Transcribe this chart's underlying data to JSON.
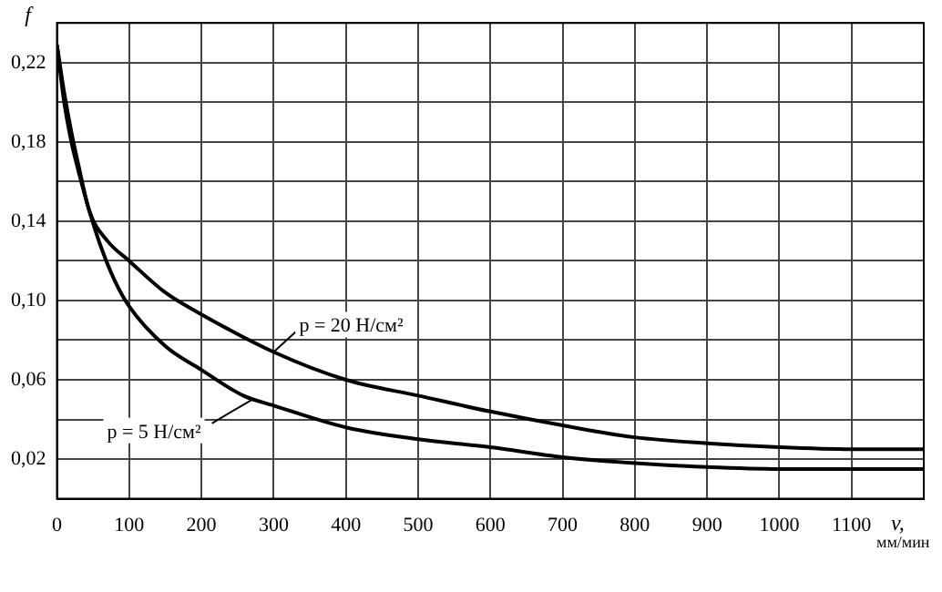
{
  "chart_data": {
    "type": "line",
    "xlabel": "v, мм/мин",
    "ylabel": "f",
    "xlim": [
      0,
      1200
    ],
    "xticks": [
      0,
      100,
      200,
      300,
      400,
      500,
      600,
      700,
      800,
      900,
      1000,
      1100
    ],
    "ylim": [
      0,
      0.24
    ],
    "yticks": [
      {
        "value": 0,
        "label": null
      },
      {
        "value": 0.02,
        "label": "0,02"
      },
      {
        "value": 0.04,
        "label": null
      },
      {
        "value": 0.06,
        "label": "0,06"
      },
      {
        "value": 0.08,
        "label": null
      },
      {
        "value": 0.1,
        "label": "0,10"
      },
      {
        "value": 0.12,
        "label": null
      },
      {
        "value": 0.14,
        "label": "0,14"
      },
      {
        "value": 0.16,
        "label": null
      },
      {
        "value": 0.18,
        "label": "0,18"
      },
      {
        "value": 0.2,
        "label": null
      },
      {
        "value": 0.22,
        "label": "0,22"
      },
      {
        "value": 0.24,
        "label": null
      }
    ],
    "grid": true,
    "legend": false,
    "marker": "none",
    "line_style": "solid",
    "series": [
      {
        "color": "#000000",
        "x": [
          0,
          10,
          20,
          30,
          45,
          60,
          80,
          100,
          150,
          200,
          258,
          300,
          400,
          500,
          600,
          700,
          800,
          900,
          1000,
          1100,
          1200
        ],
        "values": [
          0.229,
          0.2,
          0.18,
          0.165,
          0.145,
          0.128,
          0.11,
          0.097,
          0.077,
          0.065,
          0.052,
          0.047,
          0.036,
          0.03,
          0.026,
          0.021,
          0.018,
          0.016,
          0.015,
          0.015,
          0.015
        ]
      },
      {
        "color": "#000000",
        "x": [
          0,
          10,
          20,
          30,
          45,
          70,
          100,
          150,
          200,
          300,
          400,
          500,
          600,
          700,
          800,
          900,
          1000,
          1100,
          1200
        ],
        "values": [
          0.229,
          0.205,
          0.185,
          0.168,
          0.145,
          0.13,
          0.12,
          0.104,
          0.093,
          0.074,
          0.06,
          0.052,
          0.044,
          0.037,
          0.031,
          0.028,
          0.026,
          0.025,
          0.025
        ]
      }
    ],
    "annotations": [
      {
        "text": "p = 20 Н/см²",
        "x": 300,
        "y": 0.074
      },
      {
        "text": "p = 5 Н/см²",
        "x": 270,
        "y": 0.05
      }
    ]
  }
}
